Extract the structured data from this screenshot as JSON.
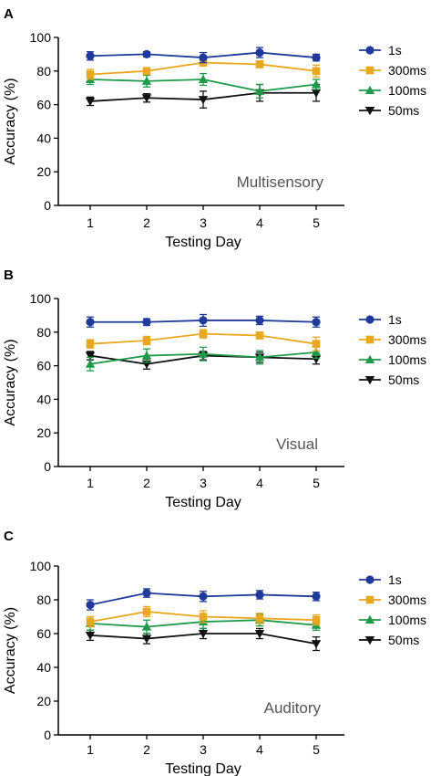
{
  "chart_data": [
    {
      "panel_letter": "A",
      "type": "line",
      "annotation": "Multisensory",
      "xlabel": "Testing Day",
      "ylabel": "Accuracy (%)",
      "x": [
        1,
        2,
        3,
        4,
        5
      ],
      "xlim": [
        0.5,
        5.5
      ],
      "ylim": [
        0,
        100
      ],
      "yticks": [
        0,
        20,
        40,
        60,
        80,
        100
      ],
      "legend_position": "right",
      "series": [
        {
          "name": "1s",
          "color": "#1f3a9a",
          "marker": "circle",
          "values": [
            89,
            90,
            88,
            91,
            88
          ],
          "errors": [
            2.5,
            1.5,
            3,
            3,
            2
          ]
        },
        {
          "name": "300ms",
          "color": "#e8a820",
          "marker": "square",
          "values": [
            78,
            80,
            85,
            84,
            80
          ],
          "errors": [
            3,
            2,
            2,
            2,
            3.5
          ]
        },
        {
          "name": "100ms",
          "color": "#1f9a4a",
          "marker": "triangle-up",
          "values": [
            75,
            74,
            75,
            68,
            72
          ],
          "errors": [
            3,
            3.5,
            3.5,
            4,
            3
          ]
        },
        {
          "name": "50ms",
          "color": "#111111",
          "marker": "triangle-down",
          "values": [
            62,
            64,
            63,
            67,
            67
          ],
          "errors": [
            2.5,
            2.5,
            5,
            5,
            5
          ]
        }
      ]
    },
    {
      "panel_letter": "B",
      "type": "line",
      "annotation": "Visual",
      "xlabel": "Testing Day",
      "ylabel": "Accuracy (%)",
      "x": [
        1,
        2,
        3,
        4,
        5
      ],
      "xlim": [
        0.5,
        5.5
      ],
      "ylim": [
        0,
        100
      ],
      "yticks": [
        0,
        20,
        40,
        60,
        80,
        100
      ],
      "legend_position": "right",
      "series": [
        {
          "name": "1s",
          "color": "#1f3a9a",
          "marker": "circle",
          "values": [
            86,
            86,
            87,
            87,
            86
          ],
          "errors": [
            3,
            2,
            3.5,
            2.5,
            3
          ]
        },
        {
          "name": "300ms",
          "color": "#e8a820",
          "marker": "square",
          "values": [
            73,
            75,
            79,
            78,
            73
          ],
          "errors": [
            2.5,
            2.5,
            2.5,
            2,
            4
          ]
        },
        {
          "name": "100ms",
          "color": "#1f9a4a",
          "marker": "triangle-up",
          "values": [
            61,
            66,
            67,
            65,
            68
          ],
          "errors": [
            4,
            4,
            4,
            4,
            3.5
          ]
        },
        {
          "name": "50ms",
          "color": "#111111",
          "marker": "triangle-down",
          "values": [
            66,
            61,
            66,
            65,
            64
          ],
          "errors": [
            2.5,
            3,
            2.5,
            3,
            3
          ]
        }
      ]
    },
    {
      "panel_letter": "C",
      "type": "line",
      "annotation": "Auditory",
      "xlabel": "Testing Day",
      "ylabel": "Accuracy (%)",
      "x": [
        1,
        2,
        3,
        4,
        5
      ],
      "xlim": [
        0.5,
        5.5
      ],
      "ylim": [
        0,
        100
      ],
      "yticks": [
        0,
        20,
        40,
        60,
        80,
        100
      ],
      "legend_position": "right",
      "series": [
        {
          "name": "1s",
          "color": "#1f3a9a",
          "marker": "circle",
          "values": [
            77,
            84,
            82,
            83,
            82
          ],
          "errors": [
            3,
            2.5,
            3,
            2.5,
            2.5
          ]
        },
        {
          "name": "300ms",
          "color": "#e8a820",
          "marker": "square",
          "values": [
            67,
            73,
            70,
            69,
            68
          ],
          "errors": [
            3,
            3,
            3.5,
            3,
            3
          ]
        },
        {
          "name": "100ms",
          "color": "#1f9a4a",
          "marker": "triangle-up",
          "values": [
            66,
            64,
            67,
            68,
            65
          ],
          "errors": [
            4,
            4,
            4,
            3.5,
            3
          ]
        },
        {
          "name": "50ms",
          "color": "#111111",
          "marker": "triangle-down",
          "values": [
            59,
            57,
            60,
            60,
            54
          ],
          "errors": [
            3,
            3,
            3,
            3,
            4
          ]
        }
      ]
    }
  ]
}
